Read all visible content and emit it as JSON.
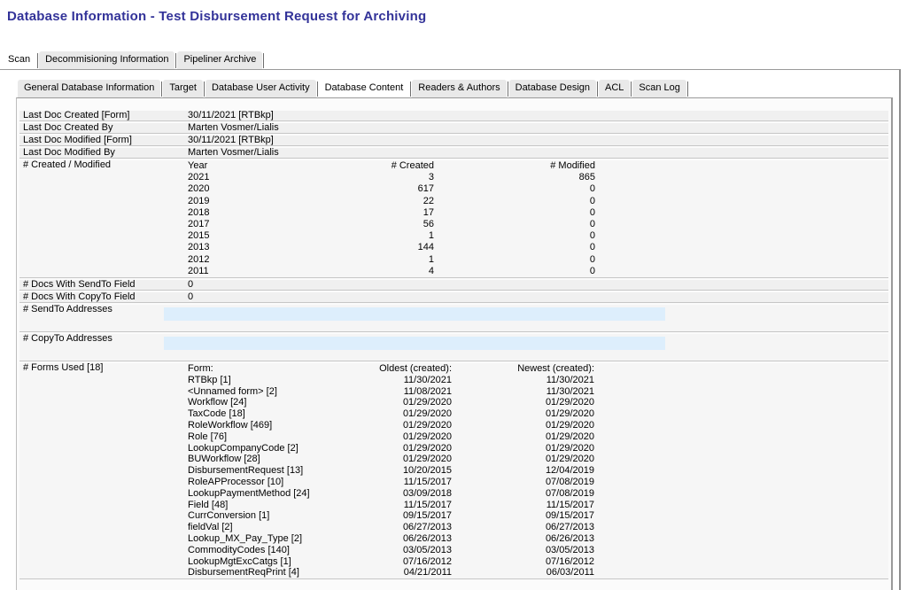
{
  "page_title": "Database Information - Test Disbursement Request for Archiving",
  "outer_tabs": [
    {
      "label": "Scan",
      "active": true
    },
    {
      "label": "Decommisioning Information",
      "active": false
    },
    {
      "label": "Pipeliner Archive",
      "active": false
    }
  ],
  "inner_tabs": [
    {
      "label": "General Database Information",
      "active": false
    },
    {
      "label": "Target",
      "active": false
    },
    {
      "label": "Database User Activity",
      "active": false
    },
    {
      "label": "Database Content",
      "active": true
    },
    {
      "label": "Readers & Authors",
      "active": false
    },
    {
      "label": "Database Design",
      "active": false
    },
    {
      "label": "ACL",
      "active": false
    },
    {
      "label": "Scan Log",
      "active": false
    }
  ],
  "doc_info_rows": [
    {
      "label": "Last Doc Created [Form]",
      "value": "30/11/2021 [RTBkp]"
    },
    {
      "label": "Last Doc Created By",
      "value": "Marten Vosmer/Lialis"
    },
    {
      "label": "Last Doc Modified [Form]",
      "value": "30/11/2021 [RTBkp]"
    },
    {
      "label": "Last Doc Modified By",
      "value": "Marten Vosmer/Lialis"
    }
  ],
  "created_modified": {
    "label": "# Created / Modified",
    "columns": [
      "Year",
      "# Created",
      "# Modified"
    ],
    "rows": [
      [
        "2021",
        "3",
        "865"
      ],
      [
        "2020",
        "617",
        "0"
      ],
      [
        "2019",
        "22",
        "0"
      ],
      [
        "2018",
        "17",
        "0"
      ],
      [
        "2017",
        "56",
        "0"
      ],
      [
        "2015",
        "1",
        "0"
      ],
      [
        "2013",
        "144",
        "0"
      ],
      [
        "2012",
        "1",
        "0"
      ],
      [
        "2011",
        "4",
        "0"
      ]
    ]
  },
  "doc_count_rows": [
    {
      "label": "# Docs With SendTo Field",
      "value": "0"
    },
    {
      "label": "# Docs With CopyTo Field",
      "value": "0"
    }
  ],
  "sendto_addresses": {
    "label": "# SendTo Addresses",
    "value": ""
  },
  "copyto_addresses": {
    "label": "# CopyTo Addresses",
    "value": ""
  },
  "forms_used": {
    "label": "# Forms Used [18]",
    "columns": [
      "Form:",
      "Oldest (created):",
      "Newest (created):"
    ],
    "rows": [
      [
        "RTBkp [1]",
        "11/30/2021",
        "11/30/2021"
      ],
      [
        "<Unnamed form> [2]",
        "11/08/2021",
        "11/30/2021"
      ],
      [
        "Workflow [24]",
        "01/29/2020",
        "01/29/2020"
      ],
      [
        "TaxCode [18]",
        "01/29/2020",
        "01/29/2020"
      ],
      [
        "RoleWorkflow [469]",
        "01/29/2020",
        "01/29/2020"
      ],
      [
        "Role [76]",
        "01/29/2020",
        "01/29/2020"
      ],
      [
        "LookupCompanyCode [2]",
        "01/29/2020",
        "01/29/2020"
      ],
      [
        "BUWorkflow [28]",
        "01/29/2020",
        "01/29/2020"
      ],
      [
        "DisbursementRequest [13]",
        "10/20/2015",
        "12/04/2019"
      ],
      [
        "RoleAPProcessor [10]",
        "11/15/2017",
        "07/08/2019"
      ],
      [
        "LookupPaymentMethod [24]",
        "03/09/2018",
        "07/08/2019"
      ],
      [
        "Field [48]",
        "11/15/2017",
        "11/15/2017"
      ],
      [
        "CurrConversion [1]",
        "09/15/2017",
        "09/15/2017"
      ],
      [
        "fieldVal [2]",
        "06/27/2013",
        "06/27/2013"
      ],
      [
        "Lookup_MX_Pay_Type [2]",
        "06/26/2013",
        "06/26/2013"
      ],
      [
        "CommodityCodes [140]",
        "03/05/2013",
        "03/05/2013"
      ],
      [
        "LookupMgtExcCatgs [1]",
        "07/16/2012",
        "07/16/2012"
      ],
      [
        "DisbursementReqPrint [4]",
        "04/21/2011",
        "06/03/2011"
      ]
    ]
  }
}
